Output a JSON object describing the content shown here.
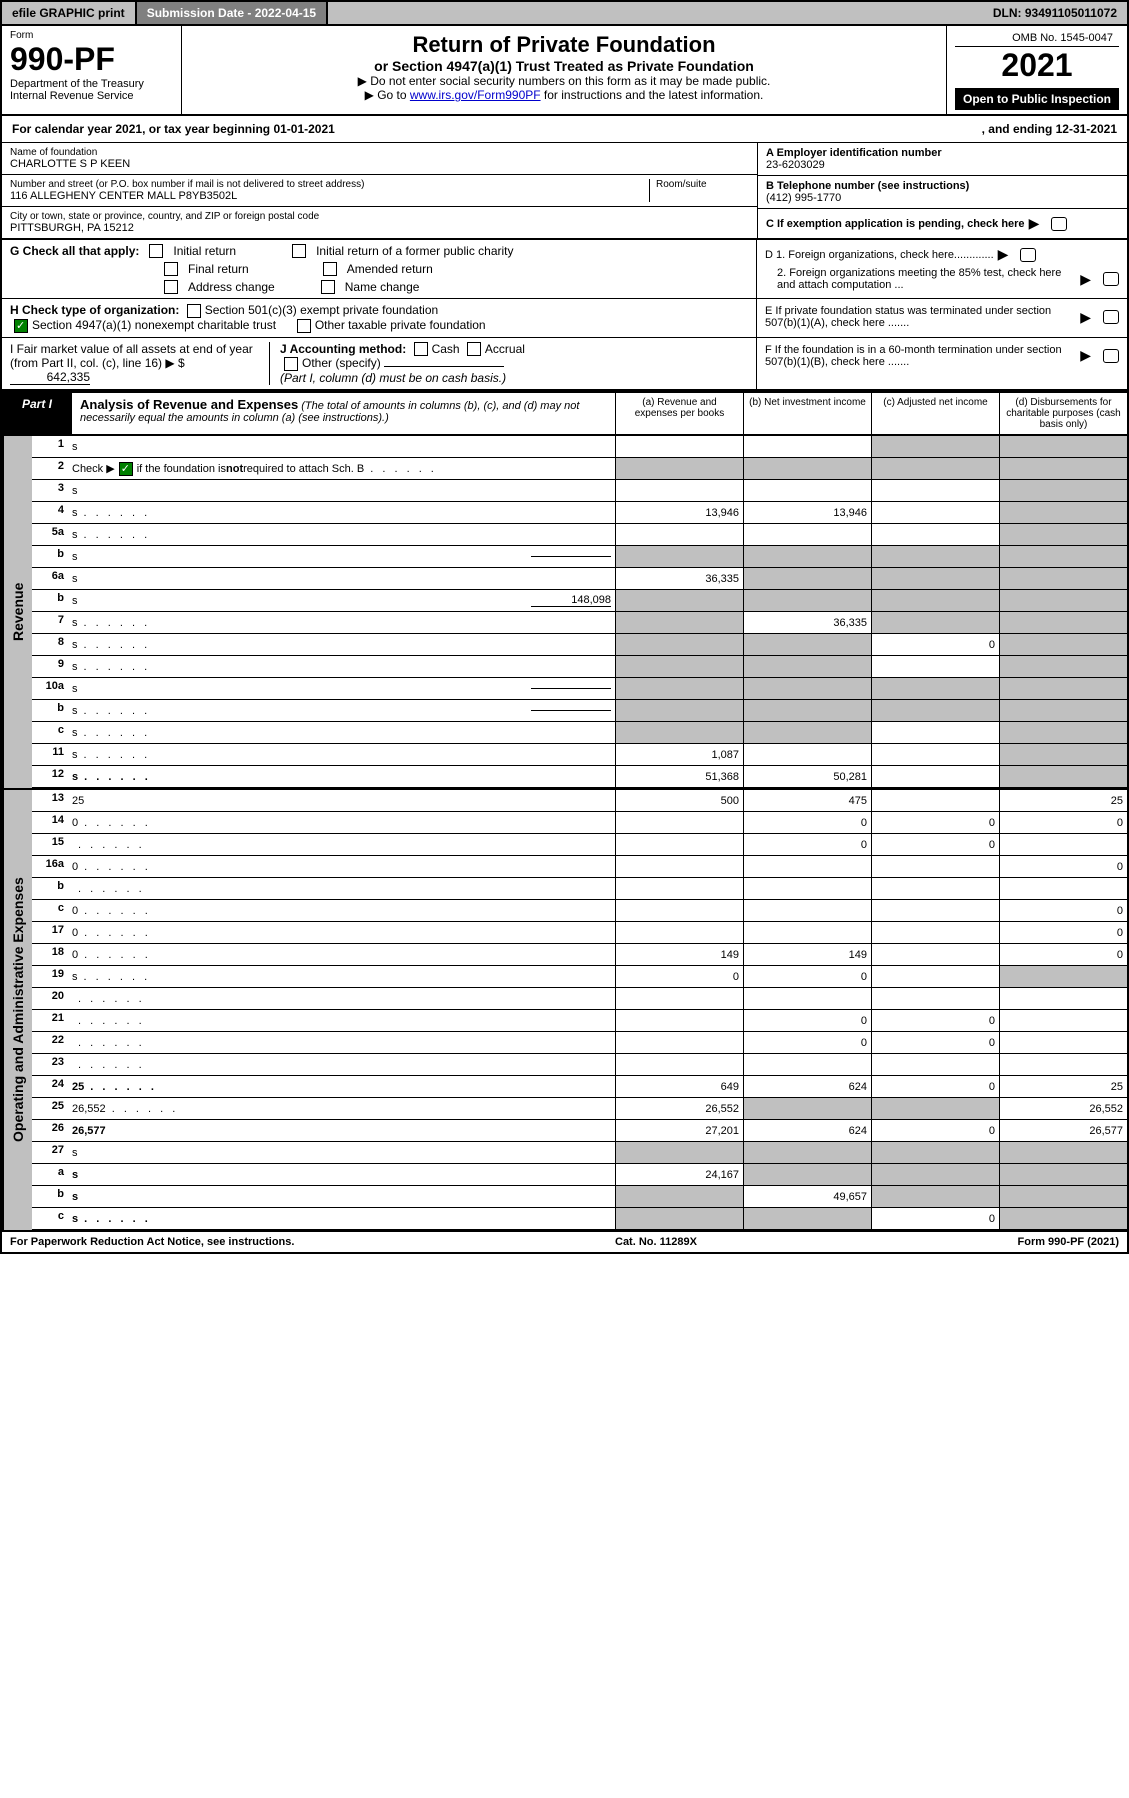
{
  "colors": {
    "black": "#000000",
    "white": "#ffffff",
    "gray_bg": "#c0c0c0",
    "gray_dark": "#808080",
    "link": "#0000cc",
    "check_green": "#008000"
  },
  "top_bar": {
    "efile": "efile GRAPHIC print",
    "submission": "Submission Date - 2022-04-15",
    "dln": "DLN: 93491105011072"
  },
  "header": {
    "form_label": "Form",
    "form_number": "990-PF",
    "dept1": "Department of the Treasury",
    "dept2": "Internal Revenue Service",
    "title": "Return of Private Foundation",
    "subtitle": "or Section 4947(a)(1) Trust Treated as Private Foundation",
    "note1": "▶ Do not enter social security numbers on this form as it may be made public.",
    "note2_pre": "▶ Go to ",
    "note2_link": "www.irs.gov/Form990PF",
    "note2_post": " for instructions and the latest information.",
    "omb": "OMB No. 1545-0047",
    "year": "2021",
    "open": "Open to Public Inspection"
  },
  "cal_year": {
    "text": "For calendar year 2021, or tax year beginning 01-01-2021",
    "ending": ", and ending 12-31-2021"
  },
  "entity": {
    "name_label": "Name of foundation",
    "name": "CHARLOTTE S P KEEN",
    "addr_label": "Number and street (or P.O. box number if mail is not delivered to street address)",
    "room_label": "Room/suite",
    "addr": "116 ALLEGHENY CENTER MALL P8YB3502L",
    "city_label": "City or town, state or province, country, and ZIP or foreign postal code",
    "city": "PITTSBURGH, PA  15212",
    "ein_label": "A Employer identification number",
    "ein": "23-6203029",
    "phone_label": "B Telephone number (see instructions)",
    "phone": "(412) 995-1770",
    "c_label": "C If exemption application is pending, check here",
    "d1": "D 1. Foreign organizations, check here.............",
    "d2": "2. Foreign organizations meeting the 85% test, check here and attach computation ...",
    "e_label": "E  If private foundation status was terminated under section 507(b)(1)(A), check here .......",
    "f_label": "F  If the foundation is in a 60-month termination under section 507(b)(1)(B), check here ......."
  },
  "g_check": {
    "label": "G Check all that apply:",
    "initial": "Initial return",
    "initial_former": "Initial return of a former public charity",
    "final": "Final return",
    "amended": "Amended return",
    "addr_change": "Address change",
    "name_change": "Name change"
  },
  "h_check": {
    "label": "H Check type of organization:",
    "opt1": "Section 501(c)(3) exempt private foundation",
    "opt2": "Section 4947(a)(1) nonexempt charitable trust",
    "opt3": "Other taxable private foundation"
  },
  "i_line": {
    "label": "I Fair market value of all assets at end of year (from Part II, col. (c), line 16)",
    "prefix": "▶ $",
    "value": "642,335"
  },
  "j_line": {
    "label": "J Accounting method:",
    "cash": "Cash",
    "accrual": "Accrual",
    "other": "Other (specify)",
    "note": "(Part I, column (d) must be on cash basis.)"
  },
  "part1": {
    "label": "Part I",
    "title": "Analysis of Revenue and Expenses",
    "desc": "(The total of amounts in columns (b), (c), and (d) may not necessarily equal the amounts in column (a) (see instructions).)"
  },
  "col_headers": {
    "a": "(a)  Revenue and expenses per books",
    "b": "(b)  Net investment income",
    "c": "(c)  Adjusted net income",
    "d": "(d)  Disbursements for charitable purposes (cash basis only)"
  },
  "vtabs": {
    "revenue": "Revenue",
    "expenses": "Operating and Administrative Expenses"
  },
  "rows": [
    {
      "n": "1",
      "d": "s",
      "a": "",
      "b": "",
      "c": "s"
    },
    {
      "n": "2",
      "d": "s",
      "note": true,
      "a": "s",
      "b": "s",
      "c": "s",
      "dotted": true
    },
    {
      "n": "3",
      "d": "s",
      "a": "",
      "b": "",
      "c": ""
    },
    {
      "n": "4",
      "d": "s",
      "a": "13,946",
      "b": "13,946",
      "c": "",
      "dotted": true
    },
    {
      "n": "5a",
      "d": "s",
      "a": "",
      "b": "",
      "c": "",
      "dotted": true
    },
    {
      "n": "b",
      "d": "s",
      "a": "s",
      "b": "s",
      "c": "s",
      "inline": ""
    },
    {
      "n": "6a",
      "d": "s",
      "a": "36,335",
      "b": "s",
      "c": "s"
    },
    {
      "n": "b",
      "d": "s",
      "a": "s",
      "b": "s",
      "c": "s",
      "inline": "148,098"
    },
    {
      "n": "7",
      "d": "s",
      "a": "s",
      "b": "36,335",
      "c": "s",
      "dotted": true
    },
    {
      "n": "8",
      "d": "s",
      "a": "s",
      "b": "s",
      "c": "0",
      "dotted": true
    },
    {
      "n": "9",
      "d": "s",
      "a": "s",
      "b": "s",
      "c": "",
      "dotted": true
    },
    {
      "n": "10a",
      "d": "s",
      "a": "s",
      "b": "s",
      "c": "s",
      "inline": ""
    },
    {
      "n": "b",
      "d": "s",
      "a": "s",
      "b": "s",
      "c": "s",
      "inline": "",
      "dotted": true
    },
    {
      "n": "c",
      "d": "s",
      "a": "s",
      "b": "s",
      "c": "",
      "dotted": true
    },
    {
      "n": "11",
      "d": "s",
      "a": "1,087",
      "b": "",
      "c": "",
      "dotted": true
    },
    {
      "n": "12",
      "d": "s",
      "a": "51,368",
      "b": "50,281",
      "c": "",
      "bold": true,
      "dotted": true
    }
  ],
  "exp_rows": [
    {
      "n": "13",
      "d": "25",
      "a": "500",
      "b": "475",
      "c": ""
    },
    {
      "n": "14",
      "d": "0",
      "a": "",
      "b": "0",
      "c": "0",
      "dotted": true
    },
    {
      "n": "15",
      "d": "",
      "a": "",
      "b": "0",
      "c": "0",
      "dotted": true
    },
    {
      "n": "16a",
      "d": "0",
      "a": "",
      "b": "",
      "c": "",
      "dotted": true
    },
    {
      "n": "b",
      "d": "",
      "a": "",
      "b": "",
      "c": "",
      "dotted": true
    },
    {
      "n": "c",
      "d": "0",
      "a": "",
      "b": "",
      "c": "",
      "dotted": true
    },
    {
      "n": "17",
      "d": "0",
      "a": "",
      "b": "",
      "c": "",
      "dotted": true
    },
    {
      "n": "18",
      "d": "0",
      "a": "149",
      "b": "149",
      "c": "",
      "dotted": true
    },
    {
      "n": "19",
      "d": "s",
      "a": "0",
      "b": "0",
      "c": "",
      "dotted": true
    },
    {
      "n": "20",
      "d": "",
      "a": "",
      "b": "",
      "c": "",
      "dotted": true
    },
    {
      "n": "21",
      "d": "",
      "a": "",
      "b": "0",
      "c": "0",
      "dotted": true
    },
    {
      "n": "22",
      "d": "",
      "a": "",
      "b": "0",
      "c": "0",
      "dotted": true
    },
    {
      "n": "23",
      "d": "",
      "a": "",
      "b": "",
      "c": "",
      "dotted": true
    },
    {
      "n": "24",
      "d": "25",
      "a": "649",
      "b": "624",
      "c": "0",
      "bold": true,
      "dotted": true
    },
    {
      "n": "25",
      "d": "26,552",
      "a": "26,552",
      "b": "s",
      "c": "s",
      "dotted": true
    },
    {
      "n": "26",
      "d": "26,577",
      "a": "27,201",
      "b": "624",
      "c": "0",
      "bold": true
    },
    {
      "n": "27",
      "d": "s",
      "a": "s",
      "b": "s",
      "c": "s"
    },
    {
      "n": "a",
      "d": "s",
      "a": "24,167",
      "b": "s",
      "c": "s",
      "bold": true
    },
    {
      "n": "b",
      "d": "s",
      "a": "s",
      "b": "49,657",
      "c": "s",
      "bold": true
    },
    {
      "n": "c",
      "d": "s",
      "a": "s",
      "b": "s",
      "c": "0",
      "bold": true,
      "dotted": true
    }
  ],
  "footer": {
    "left": "For Paperwork Reduction Act Notice, see instructions.",
    "center": "Cat. No. 11289X",
    "right": "Form 990-PF (2021)"
  }
}
